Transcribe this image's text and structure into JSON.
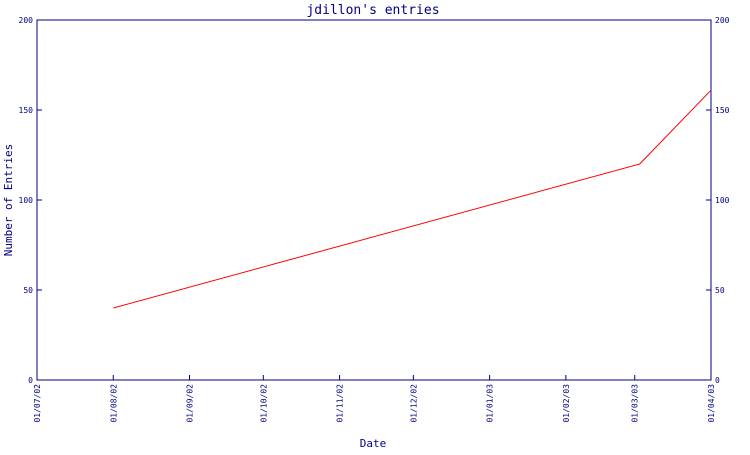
{
  "chart_data": {
    "type": "line",
    "title": "jdillon's entries",
    "xlabel": "Date",
    "ylabel": "Number of Entries",
    "ylim": [
      0,
      200
    ],
    "yticks": [
      0,
      50,
      100,
      150,
      200
    ],
    "xlim": [
      "2002-07-01",
      "2003-04-01"
    ],
    "xticks": [
      {
        "date": "2002-07-01",
        "label": "01/07/02"
      },
      {
        "date": "2002-08-01",
        "label": "01/08/02"
      },
      {
        "date": "2002-09-01",
        "label": "01/09/02"
      },
      {
        "date": "2002-10-01",
        "label": "01/10/02"
      },
      {
        "date": "2002-11-01",
        "label": "01/11/02"
      },
      {
        "date": "2002-12-01",
        "label": "01/12/02"
      },
      {
        "date": "2003-01-01",
        "label": "01/01/03"
      },
      {
        "date": "2003-02-01",
        "label": "01/02/03"
      },
      {
        "date": "2003-03-01",
        "label": "01/03/03"
      },
      {
        "date": "2003-04-01",
        "label": "01/04/03"
      }
    ],
    "series": [
      {
        "color": "#ff0000",
        "points": [
          {
            "x": "2002-08-01",
            "y": 40
          },
          {
            "x": "2003-03-03",
            "y": 120
          },
          {
            "x": "2003-04-01",
            "y": 161
          }
        ]
      }
    ],
    "grid": false,
    "axis_color": "#000080",
    "text_color": "#000080",
    "right_axis_mirror": true
  }
}
